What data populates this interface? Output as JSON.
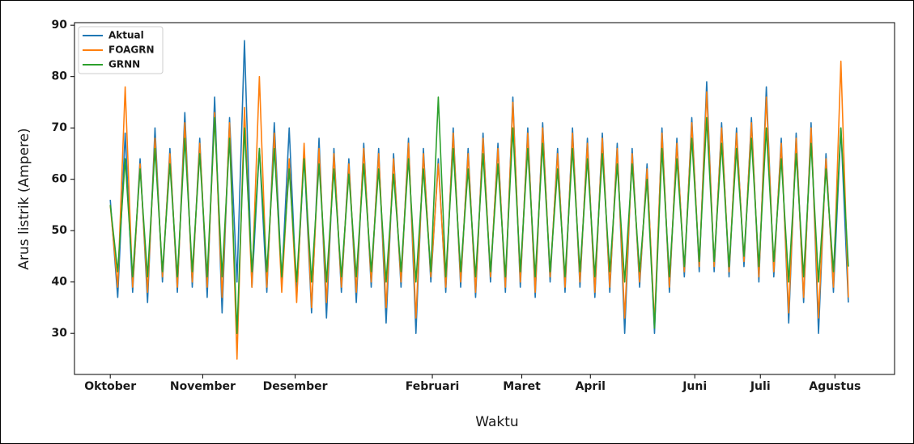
{
  "chart_data": {
    "type": "line",
    "xlabel": "Waktu",
    "ylabel": "Arus listrik (Ampere)",
    "x": [
      0,
      2.5,
      5,
      7.5,
      10,
      12.5,
      15,
      17.5,
      20,
      22.5,
      25,
      27.5,
      30,
      32.5,
      35,
      37.5,
      40,
      42.5,
      45,
      47.5,
      50,
      52.5,
      55,
      57.5,
      60,
      62.5,
      65,
      67.5,
      70,
      72.5,
      75,
      77.5,
      80,
      82.5,
      85,
      87.5,
      90,
      92.5,
      95,
      97.5,
      100,
      102.5,
      105,
      107.5,
      110,
      112.5,
      115,
      117.5,
      120,
      122.5,
      125,
      127.5,
      130,
      132.5,
      135,
      137.5,
      140,
      142.5,
      145,
      147.5,
      150,
      152.5,
      155,
      157.5,
      160,
      162.5,
      165,
      167.5,
      170,
      172.5,
      175,
      177.5,
      180,
      182.5,
      185,
      187.5,
      190,
      192.5,
      195,
      197.5,
      200,
      202.5,
      205,
      207.5,
      210,
      212.5,
      215,
      217.5,
      220,
      222.5,
      225,
      227.5,
      230,
      232.5,
      235,
      237.5,
      240,
      242.5,
      245,
      247.5
    ],
    "series": [
      {
        "name": "Aktual",
        "color": "#1f77b4",
        "values": [
          56,
          37,
          69,
          38,
          64,
          36,
          70,
          40,
          66,
          38,
          73,
          39,
          68,
          37,
          76,
          34,
          72,
          40,
          87,
          39,
          66,
          38,
          71,
          40,
          70,
          37,
          65,
          34,
          68,
          33,
          66,
          38,
          64,
          36,
          67,
          39,
          66,
          32,
          65,
          39,
          68,
          30,
          66,
          40,
          64,
          38,
          70,
          39,
          66,
          37,
          69,
          40,
          67,
          38,
          76,
          39,
          70,
          37,
          71,
          40,
          66,
          38,
          70,
          39,
          68,
          37,
          69,
          38,
          67,
          30,
          66,
          39,
          63,
          30,
          70,
          38,
          68,
          41,
          72,
          42,
          79,
          42,
          71,
          41,
          70,
          43,
          72,
          40,
          78,
          41,
          68,
          32,
          69,
          36,
          71,
          30,
          65,
          38,
          70,
          36
        ]
      },
      {
        "name": "FOAGRN",
        "color": "#ff7f0e",
        "values": [
          55,
          39,
          78,
          39,
          63,
          38,
          68,
          41,
          65,
          39,
          71,
          40,
          67,
          39,
          73,
          37,
          71,
          25,
          74,
          39,
          80,
          39,
          69,
          38,
          64,
          36,
          67,
          35,
          66,
          36,
          65,
          39,
          63,
          38,
          66,
          40,
          65,
          35,
          64,
          40,
          67,
          33,
          65,
          41,
          63,
          39,
          69,
          40,
          65,
          38,
          68,
          41,
          66,
          39,
          75,
          40,
          69,
          38,
          70,
          41,
          65,
          39,
          69,
          40,
          67,
          38,
          68,
          39,
          66,
          33,
          65,
          40,
          62,
          32,
          69,
          39,
          67,
          42,
          71,
          43,
          77,
          43,
          70,
          42,
          69,
          44,
          71,
          41,
          76,
          42,
          67,
          34,
          68,
          37,
          70,
          33,
          64,
          39,
          83,
          37
        ]
      },
      {
        "name": "GRNN",
        "color": "#2ca02c",
        "values": [
          55,
          42,
          64,
          41,
          62,
          41,
          66,
          42,
          63,
          41,
          68,
          42,
          65,
          41,
          72,
          41,
          68,
          30,
          70,
          42,
          66,
          42,
          66,
          41,
          62,
          40,
          64,
          40,
          63,
          40,
          62,
          41,
          61,
          41,
          63,
          42,
          62,
          40,
          61,
          42,
          64,
          40,
          62,
          42,
          76,
          41,
          66,
          42,
          62,
          41,
          65,
          42,
          63,
          41,
          70,
          42,
          66,
          41,
          67,
          42,
          62,
          41,
          66,
          42,
          64,
          41,
          65,
          42,
          63,
          40,
          63,
          42,
          60,
          31,
          66,
          41,
          64,
          43,
          68,
          44,
          72,
          44,
          67,
          43,
          66,
          45,
          68,
          43,
          70,
          44,
          64,
          40,
          65,
          41,
          67,
          40,
          62,
          42,
          70,
          43
        ]
      }
    ],
    "xlim": [
      -12,
      263
    ],
    "xticks": [
      {
        "value": 0,
        "label": "Oktober"
      },
      {
        "value": 31,
        "label": "November"
      },
      {
        "value": 62,
        "label": "Desember"
      },
      {
        "value": 108,
        "label": "Februari"
      },
      {
        "value": 138,
        "label": "Maret"
      },
      {
        "value": 161,
        "label": "April"
      },
      {
        "value": 196,
        "label": "Juni"
      },
      {
        "value": 218,
        "label": "Juli"
      },
      {
        "value": 243,
        "label": "Agustus"
      }
    ],
    "ylim": [
      22,
      90.5
    ],
    "yticks": [
      30,
      40,
      50,
      60,
      70,
      80,
      90
    ],
    "legend": "upper left"
  }
}
